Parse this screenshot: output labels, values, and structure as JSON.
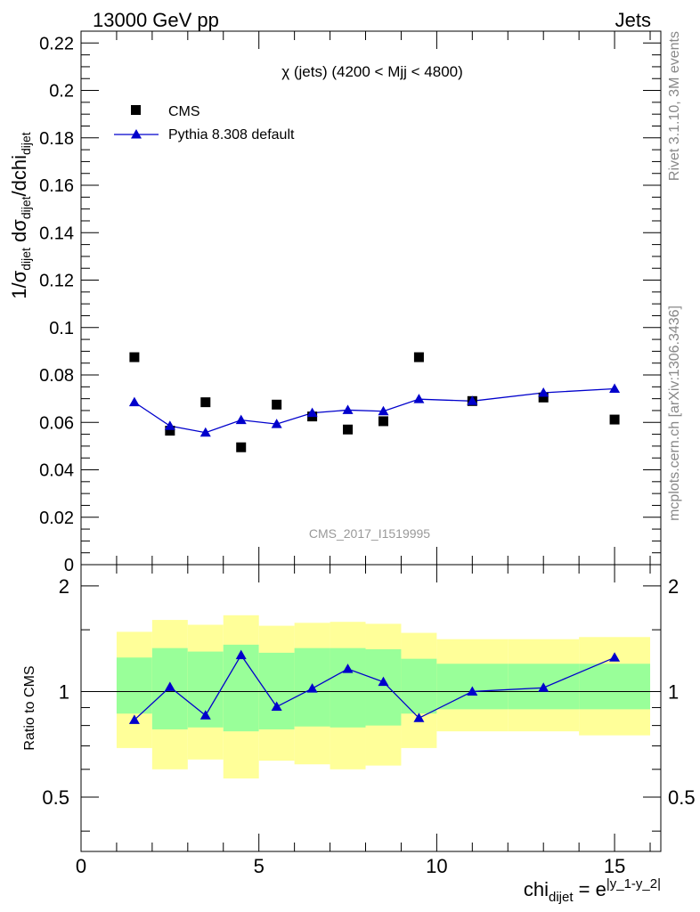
{
  "header": {
    "left": "13000 GeV pp",
    "right": "Jets"
  },
  "side_labels": {
    "rivet": "Rivet 3.1.10,  3M events",
    "mcplots": "mcplots.cern.ch [arXiv:1306.3436]"
  },
  "watermark": "CMS_2017_I1519995",
  "chart_data": {
    "type": "scatter",
    "title": "χ (jets) (4200 < Mjj < 4800)",
    "ylabel": {
      "main": "1/σ",
      "sub1": "dijet",
      "mid": " dσ",
      "sub2": "dijet",
      "tail": "/dchi",
      "sub3": "dijet"
    },
    "xlabel": {
      "main": "chi",
      "sub": "dijet",
      "eq": " = e",
      "sup": "|y_1-y_2|"
    },
    "ratio_ylabel": "Ratio to CMS",
    "xlim": [
      0,
      16.3
    ],
    "ylim": [
      0,
      0.225
    ],
    "ratio_ylim": [
      0.35,
      2.3
    ],
    "x_ticks": [
      0,
      5,
      10,
      15
    ],
    "x_tick_labels": [
      "0",
      "5",
      "10",
      "15"
    ],
    "y_ticks": [
      0,
      0.02,
      0.04,
      0.06,
      0.08,
      0.1,
      0.12,
      0.14,
      0.16,
      0.18,
      0.2,
      0.22
    ],
    "y_tick_labels": [
      "0",
      "0.02",
      "0.04",
      "0.06",
      "0.08",
      "0.1",
      "0.12",
      "0.14",
      "0.16",
      "0.18",
      "0.2",
      "0.22"
    ],
    "ratio_ticks": [
      0.5,
      1,
      2
    ],
    "ratio_tick_labels": [
      "0.5",
      "1",
      "2"
    ],
    "legend": {
      "position": "top-left",
      "entries": [
        "CMS",
        "Pythia 8.308 default"
      ]
    },
    "x": [
      1.5,
      2.5,
      3.5,
      4.5,
      5.5,
      6.5,
      7.5,
      8.5,
      9.5,
      11,
      13,
      15
    ],
    "bin_edges": [
      1,
      2,
      3,
      4,
      5,
      6,
      7,
      8,
      9,
      10,
      12,
      14,
      16
    ],
    "series": [
      {
        "name": "CMS",
        "values": [
          0.0875,
          0.0565,
          0.0685,
          0.0495,
          0.0675,
          0.0625,
          0.057,
          0.0605,
          0.0875,
          0.069,
          0.0705,
          0.0612
        ]
      },
      {
        "name": "Pythia 8.308 default",
        "values": [
          0.0685,
          0.0585,
          0.0557,
          0.061,
          0.0593,
          0.064,
          0.0652,
          0.0647,
          0.0698,
          0.069,
          0.0725,
          0.0742
        ]
      }
    ],
    "ratio_values": [
      0.83,
      1.03,
      0.855,
      1.27,
      0.905,
      1.02,
      1.16,
      1.065,
      0.84,
      1.0,
      1.025,
      1.25
    ],
    "bands": {
      "inner_low": [
        0.865,
        0.78,
        0.79,
        0.77,
        0.78,
        0.795,
        0.79,
        0.8,
        0.865,
        0.89,
        0.89,
        0.89
      ],
      "inner_high": [
        1.25,
        1.33,
        1.3,
        1.36,
        1.29,
        1.33,
        1.33,
        1.32,
        1.24,
        1.2,
        1.2,
        1.2
      ],
      "outer_low": [
        0.69,
        0.6,
        0.64,
        0.565,
        0.635,
        0.62,
        0.6,
        0.615,
        0.69,
        0.77,
        0.77,
        0.75
      ],
      "outer_high": [
        1.48,
        1.6,
        1.55,
        1.65,
        1.54,
        1.57,
        1.58,
        1.56,
        1.47,
        1.41,
        1.41,
        1.43
      ]
    },
    "colors": {
      "mc": "#0000cc",
      "data": "#000000",
      "inner_band": "#99ff99",
      "outer_band": "#ffff99"
    }
  }
}
